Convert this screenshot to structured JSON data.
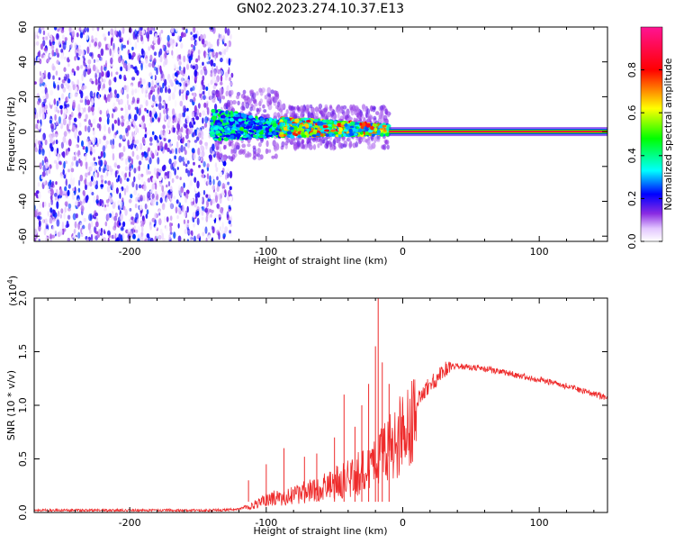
{
  "figure_title": "GN02.2023.274.10.37.E13",
  "chart_data": [
    {
      "type": "heatmap",
      "title": "",
      "xlabel": "Height of straight line (km)",
      "ylabel": "Frequency (Hz)",
      "xlim": [
        -270,
        150
      ],
      "ylim": [
        -63,
        60
      ],
      "x_ticks": [
        -200,
        -100,
        0,
        100
      ],
      "y_ticks": [
        -60,
        -40,
        -20,
        0,
        20,
        40,
        60
      ],
      "colorbar": {
        "label": "Normalized spectral amplitude",
        "range": [
          0,
          1
        ],
        "ticks": [
          0.0,
          0.2,
          0.4,
          0.6,
          0.8
        ]
      },
      "regions": [
        {
          "x_range": [
            -270,
            -125
          ],
          "freq_range": [
            -63,
            60
          ],
          "amplitude": [
            0.0,
            0.25
          ],
          "pattern": "scattered-noise"
        },
        {
          "x_range": [
            -140,
            -90
          ],
          "freq_range": [
            -5,
            13
          ],
          "amplitude": [
            0.2,
            0.5
          ]
        },
        {
          "x_range": [
            -90,
            -10
          ],
          "freq_range": [
            -3,
            8
          ],
          "amplitude": [
            0.25,
            0.85
          ]
        },
        {
          "x_range": [
            -10,
            150
          ],
          "freq_range": [
            -0.5,
            0.5
          ],
          "amplitude": [
            0.8,
            1.0
          ]
        }
      ]
    },
    {
      "type": "line",
      "title": "",
      "xlabel": "Height of straight line (km)",
      "ylabel": "SNR (10 * v/v)",
      "y_scale_label": "(x10",
      "y_scale_exp": "4",
      "xlim": [
        -270,
        150
      ],
      "ylim": [
        0,
        2.0
      ],
      "x_ticks": [
        -200,
        -100,
        0,
        100
      ],
      "y_ticks": [
        0.0,
        0.5,
        1.0,
        1.5,
        2.0
      ],
      "series_color": "#ee2b2b",
      "x": [
        -270,
        -220,
        -180,
        -140,
        -120,
        -110,
        -100,
        -80,
        -60,
        -40,
        -20,
        -15,
        -10,
        0,
        10,
        20,
        30,
        40,
        60,
        80,
        100,
        120,
        150
      ],
      "values": [
        0.02,
        0.02,
        0.02,
        0.02,
        0.03,
        0.08,
        0.15,
        0.2,
        0.28,
        0.4,
        0.55,
        0.65,
        0.75,
        0.9,
        1.05,
        1.2,
        1.32,
        1.37,
        1.34,
        1.29,
        1.24,
        1.18,
        1.07
      ],
      "spikes": [
        {
          "x": -113,
          "value": 0.3
        },
        {
          "x": -100,
          "value": 0.45
        },
        {
          "x": -87,
          "value": 0.6
        },
        {
          "x": -72,
          "value": 0.52
        },
        {
          "x": -63,
          "value": 0.55
        },
        {
          "x": -50,
          "value": 0.7
        },
        {
          "x": -43,
          "value": 1.1
        },
        {
          "x": -35,
          "value": 0.8
        },
        {
          "x": -30,
          "value": 1.0
        },
        {
          "x": -25,
          "value": 1.2
        },
        {
          "x": -20,
          "value": 1.55
        },
        {
          "x": -18,
          "value": 2.0
        },
        {
          "x": -15,
          "value": 1.4
        },
        {
          "x": -10,
          "value": 1.2
        }
      ]
    }
  ]
}
